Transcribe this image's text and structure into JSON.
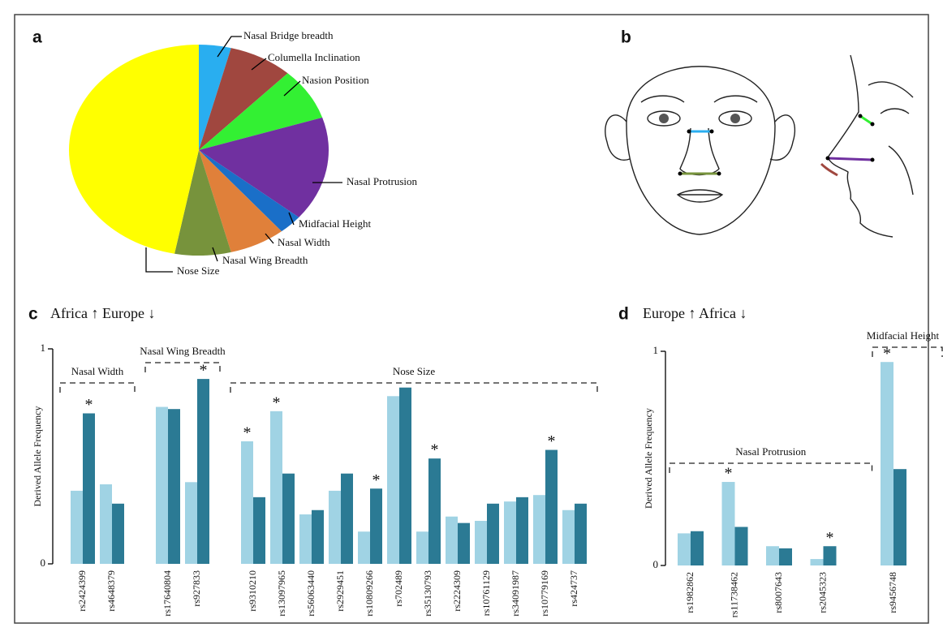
{
  "chart_data": [
    {
      "type": "pie",
      "panel": "a",
      "categories": [
        "Nasal Bridge breadth",
        "Columella Inclination",
        "Nasion Position",
        "Nasal Protrusion",
        "Midfacial Height",
        "Nasal Width",
        "Nasal Wing Breadth",
        "Nose Size"
      ],
      "values": [
        4,
        8,
        8,
        16,
        3,
        7,
        7,
        47
      ],
      "colors": [
        "#29aef0",
        "#a0473f",
        "#33f033",
        "#7030a0",
        "#1a6fc8",
        "#e0803a",
        "#77933c",
        "#ffff00"
      ]
    },
    {
      "type": "bar",
      "panel": "c",
      "title": "Africa ↑ Europe ↓",
      "y_label": "Derived Allele Frequency",
      "categories": [
        "rs2424399",
        "rs4648379",
        "rs17640804",
        "rs927833",
        "rs9310210",
        "rs13097965",
        "rs56063440",
        "rs2929451",
        "rs10809266",
        "rs702489",
        "rs35130793",
        "rs2224309",
        "rs10761129",
        "rs34091987",
        "rs10779169",
        "rs424737"
      ],
      "series": [
        {
          "color": "#a0d3e4",
          "values": [
            0.34,
            0.37,
            0.73,
            0.38,
            0.57,
            0.71,
            0.23,
            0.34,
            0.15,
            0.78,
            0.15,
            0.22,
            0.2,
            0.29,
            0.32,
            0.25
          ]
        },
        {
          "color": "#2b7a94",
          "values": [
            0.7,
            0.28,
            0.72,
            0.86,
            0.31,
            0.42,
            0.25,
            0.42,
            0.35,
            0.82,
            0.49,
            0.19,
            0.28,
            0.31,
            0.53,
            0.28
          ]
        }
      ],
      "ylim": [
        0,
        1
      ],
      "yticks": [
        0,
        1
      ],
      "groups": [
        {
          "label": "Nasal Width",
          "first": 0,
          "last": 1
        },
        {
          "label": "Nasal Wing Breadth",
          "first": 2,
          "last": 3
        },
        {
          "label": "Nose Size",
          "first": 4,
          "last": 15
        }
      ],
      "markers": [
        {
          "label": "*",
          "series": 1,
          "index": 0
        },
        {
          "label": "*",
          "series": 1,
          "index": 3
        },
        {
          "label": "*",
          "series": 0,
          "index": 4
        },
        {
          "label": "*",
          "series": 0,
          "index": 5
        },
        {
          "label": "*",
          "series": 1,
          "index": 8
        },
        {
          "label": "*",
          "series": 1,
          "index": 10
        },
        {
          "label": "*",
          "series": 1,
          "index": 14
        }
      ]
    },
    {
      "type": "bar",
      "panel": "d",
      "title": "Europe ↑ Africa ↓",
      "y_label": "Derived Allele Frequency",
      "categories": [
        "rs1982862",
        "rs11738462",
        "rs8007643",
        "rs2045323",
        "rs9456748"
      ],
      "series": [
        {
          "color": "#a0d3e4",
          "values": [
            0.15,
            0.39,
            0.09,
            0.03,
            0.95
          ]
        },
        {
          "color": "#2b7a94",
          "values": [
            0.16,
            0.18,
            0.08,
            0.09,
            0.45
          ]
        }
      ],
      "ylim": [
        0,
        1
      ],
      "yticks": [
        0,
        1
      ],
      "groups": [
        {
          "label": "Nasal Protrusion",
          "first": 0,
          "last": 3
        },
        {
          "label": "Midfacial Height",
          "first": 4,
          "last": 4
        }
      ],
      "markers": [
        {
          "label": "*",
          "series": 0,
          "index": 1
        },
        {
          "label": "*",
          "series": 1,
          "index": 3
        },
        {
          "label": "*",
          "series": 0,
          "index": 4
        }
      ]
    }
  ],
  "illustration": {
    "panel": "b"
  }
}
